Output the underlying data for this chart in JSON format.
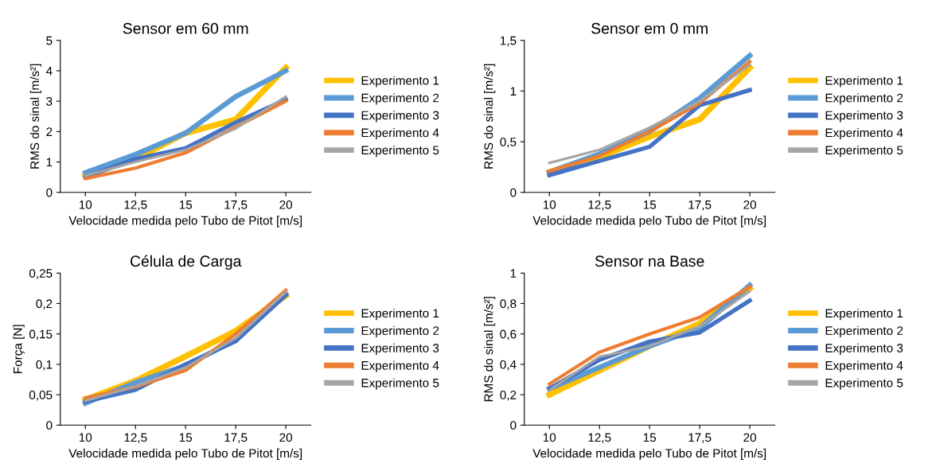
{
  "chart_data": [
    {
      "type": "line",
      "title": "Sensor em 60 mm",
      "xlabel": "Velocidade medida pelo Tubo de Pitot [m/s]",
      "ylabel": "RMS do sinal [m/s²]",
      "categories": [
        "10",
        "12,5",
        "15",
        "17,5",
        "20"
      ],
      "ylim": [
        0,
        5
      ],
      "yticks": [
        0,
        1,
        2,
        3,
        4,
        5
      ],
      "grid": false,
      "legend": "right",
      "marker": "none",
      "line_style": "solid",
      "series": [
        {
          "name": "Experimento 1",
          "color": "#ffc000",
          "values": [
            0.55,
            1.1,
            1.95,
            2.4,
            4.1
          ]
        },
        {
          "name": "Experimento 2",
          "color": "#5b9bd5",
          "values": [
            0.65,
            1.25,
            1.95,
            3.15,
            4.0
          ]
        },
        {
          "name": "Experimento 3",
          "color": "#4472c4",
          "values": [
            0.5,
            1.1,
            1.45,
            2.3,
            3.05
          ]
        },
        {
          "name": "Experimento 4",
          "color": "#ed7d31",
          "values": [
            0.45,
            0.8,
            1.3,
            2.15,
            3.0
          ]
        },
        {
          "name": "Experimento 5",
          "color": "#a5a5a5",
          "values": [
            0.55,
            1.0,
            1.4,
            2.1,
            3.15
          ]
        }
      ]
    },
    {
      "type": "line",
      "title": "Sensor em 0 mm",
      "xlabel": "Velocidade medida pelo Tubo de Pitot [m/s]",
      "ylabel": "RMS do sinal [m/s²]",
      "categories": [
        "10",
        "12,5",
        "15",
        "17,5",
        "20"
      ],
      "ylim": [
        0,
        1.5
      ],
      "yticks": [
        0,
        {
          "value": 0.5,
          "label": "0,5"
        },
        1,
        {
          "value": 1.5,
          "label": "1,5"
        }
      ],
      "grid": false,
      "legend": "right",
      "marker": "none",
      "line_style": "solid",
      "series": [
        {
          "name": "Experimento 1",
          "color": "#ffc000",
          "values": [
            0.2,
            0.35,
            0.55,
            0.72,
            1.23
          ]
        },
        {
          "name": "Experimento 2",
          "color": "#5b9bd5",
          "values": [
            0.2,
            0.38,
            0.6,
            0.93,
            1.35
          ]
        },
        {
          "name": "Experimento 3",
          "color": "#4472c4",
          "values": [
            0.17,
            0.31,
            0.45,
            0.86,
            1.01
          ]
        },
        {
          "name": "Experimento 4",
          "color": "#ed7d31",
          "values": [
            0.21,
            0.36,
            0.6,
            0.88,
            1.29
          ]
        },
        {
          "name": "Experimento 5",
          "color": "#a5a5a5",
          "values": [
            0.29,
            0.42,
            0.64,
            0.9,
            1.26
          ]
        }
      ]
    },
    {
      "type": "line",
      "title": "Célula de Carga",
      "xlabel": "Velocidade medida pelo Tubo de Pitot [m/s]",
      "ylabel": "Força [N]",
      "categories": [
        "10",
        "12,5",
        "15",
        "17,5",
        "20"
      ],
      "ylim": [
        0,
        0.25
      ],
      "yticks": [
        0,
        {
          "value": 0.05,
          "label": "0,05"
        },
        {
          "value": 0.1,
          "label": "0,1"
        },
        {
          "value": 0.15,
          "label": "0,15"
        },
        {
          "value": 0.2,
          "label": "0,2"
        },
        {
          "value": 0.25,
          "label": "0,25"
        }
      ],
      "grid": false,
      "legend": "right",
      "marker": "none",
      "line_style": "solid",
      "series": [
        {
          "name": "Experimento 1",
          "color": "#ffc000",
          "values": [
            0.042,
            0.073,
            0.113,
            0.155,
            0.213
          ]
        },
        {
          "name": "Experimento 2",
          "color": "#5b9bd5",
          "values": [
            0.036,
            0.07,
            0.098,
            0.14,
            0.216
          ]
        },
        {
          "name": "Experimento 3",
          "color": "#4472c4",
          "values": [
            0.039,
            0.058,
            0.1,
            0.138,
            0.214
          ]
        },
        {
          "name": "Experimento 4",
          "color": "#ed7d31",
          "values": [
            0.045,
            0.063,
            0.09,
            0.15,
            0.222
          ]
        },
        {
          "name": "Experimento 5",
          "color": "#a5a5a5",
          "values": [
            0.04,
            0.064,
            0.095,
            0.143,
            0.219
          ]
        }
      ]
    },
    {
      "type": "line",
      "title": "Sensor na Base",
      "xlabel": "Velocidade medida pelo Tubo de Pitot [m/s]",
      "ylabel": "RMS do sinal [m/s²]",
      "categories": [
        "10",
        "12,5",
        "15",
        "17,5",
        "20"
      ],
      "ylim": [
        0,
        1
      ],
      "yticks": [
        0,
        {
          "value": 0.2,
          "label": "0,2"
        },
        {
          "value": 0.4,
          "label": "0,4"
        },
        {
          "value": 0.6,
          "label": "0,6"
        },
        {
          "value": 0.8,
          "label": "0,8"
        },
        1
      ],
      "grid": false,
      "legend": "right",
      "marker": "none",
      "line_style": "solid",
      "series": [
        {
          "name": "Experimento 1",
          "color": "#ffc000",
          "values": [
            0.2,
            0.36,
            0.52,
            0.67,
            0.9
          ]
        },
        {
          "name": "Experimento 2",
          "color": "#5b9bd5",
          "values": [
            0.24,
            0.38,
            0.52,
            0.64,
            0.92
          ]
        },
        {
          "name": "Experimento 3",
          "color": "#4472c4",
          "values": [
            0.24,
            0.43,
            0.55,
            0.61,
            0.82
          ]
        },
        {
          "name": "Experimento 4",
          "color": "#ed7d31",
          "values": [
            0.27,
            0.48,
            0.6,
            0.71,
            0.91
          ]
        },
        {
          "name": "Experimento 5",
          "color": "#a5a5a5",
          "values": [
            0.23,
            0.45,
            0.52,
            0.65,
            0.88
          ]
        }
      ]
    }
  ]
}
